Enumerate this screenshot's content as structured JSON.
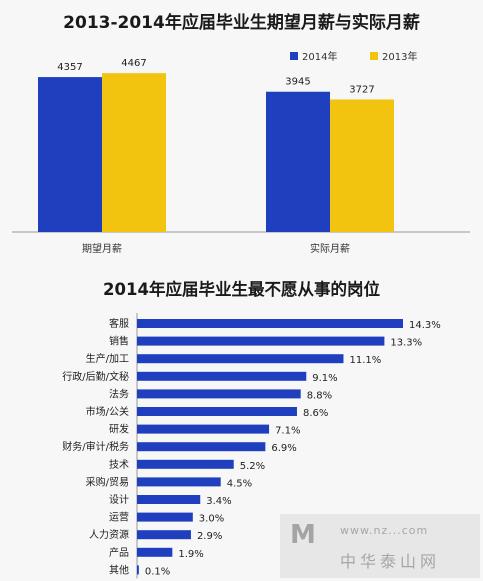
{
  "colors": {
    "c2014": "#1f3fbf",
    "c2013": "#f2c40f",
    "bar2": "#1f3fbf",
    "axis": "#999999"
  },
  "chart_data": [
    {
      "type": "bar",
      "title": "2013-2014年应届毕业生期望月薪与实际月薪",
      "categories": [
        "期望月薪",
        "实际月薪"
      ],
      "series": [
        {
          "name": "2014年",
          "values": [
            4357,
            3945
          ]
        },
        {
          "name": "2013年",
          "values": [
            4467,
            3727
          ]
        }
      ],
      "ylim": [
        0,
        5400
      ],
      "legend": "top-right",
      "grid": false
    },
    {
      "type": "bar",
      "orientation": "horizontal",
      "title": "2014年应届毕业生最不愿从事的岗位",
      "categories": [
        "客服",
        "销售",
        "生产/加工",
        "行政/后勤/文秘",
        "法务",
        "市场/公关",
        "研发",
        "财务/审计/税务",
        "技术",
        "采购/贸易",
        "设计",
        "运营",
        "人力资源",
        "产品",
        "其他"
      ],
      "values": [
        14.3,
        13.3,
        11.1,
        9.1,
        8.8,
        8.6,
        7.1,
        6.9,
        5.2,
        4.5,
        3.4,
        3.0,
        2.9,
        1.9,
        0.1
      ],
      "value_labels": [
        "14.3%",
        "13.3%",
        "11.1%",
        "9.1%",
        "8.8%",
        "8.6%",
        "7.1%",
        "6.9%",
        "5.2%",
        "4.5%",
        "3.4%",
        "3.0%",
        "2.9%",
        "1.9%",
        "0.1%"
      ],
      "xlim": [
        0,
        14.3
      ],
      "grid": false
    }
  ],
  "watermark": {
    "url": "www.nz...com",
    "text": "中华泰山网"
  }
}
